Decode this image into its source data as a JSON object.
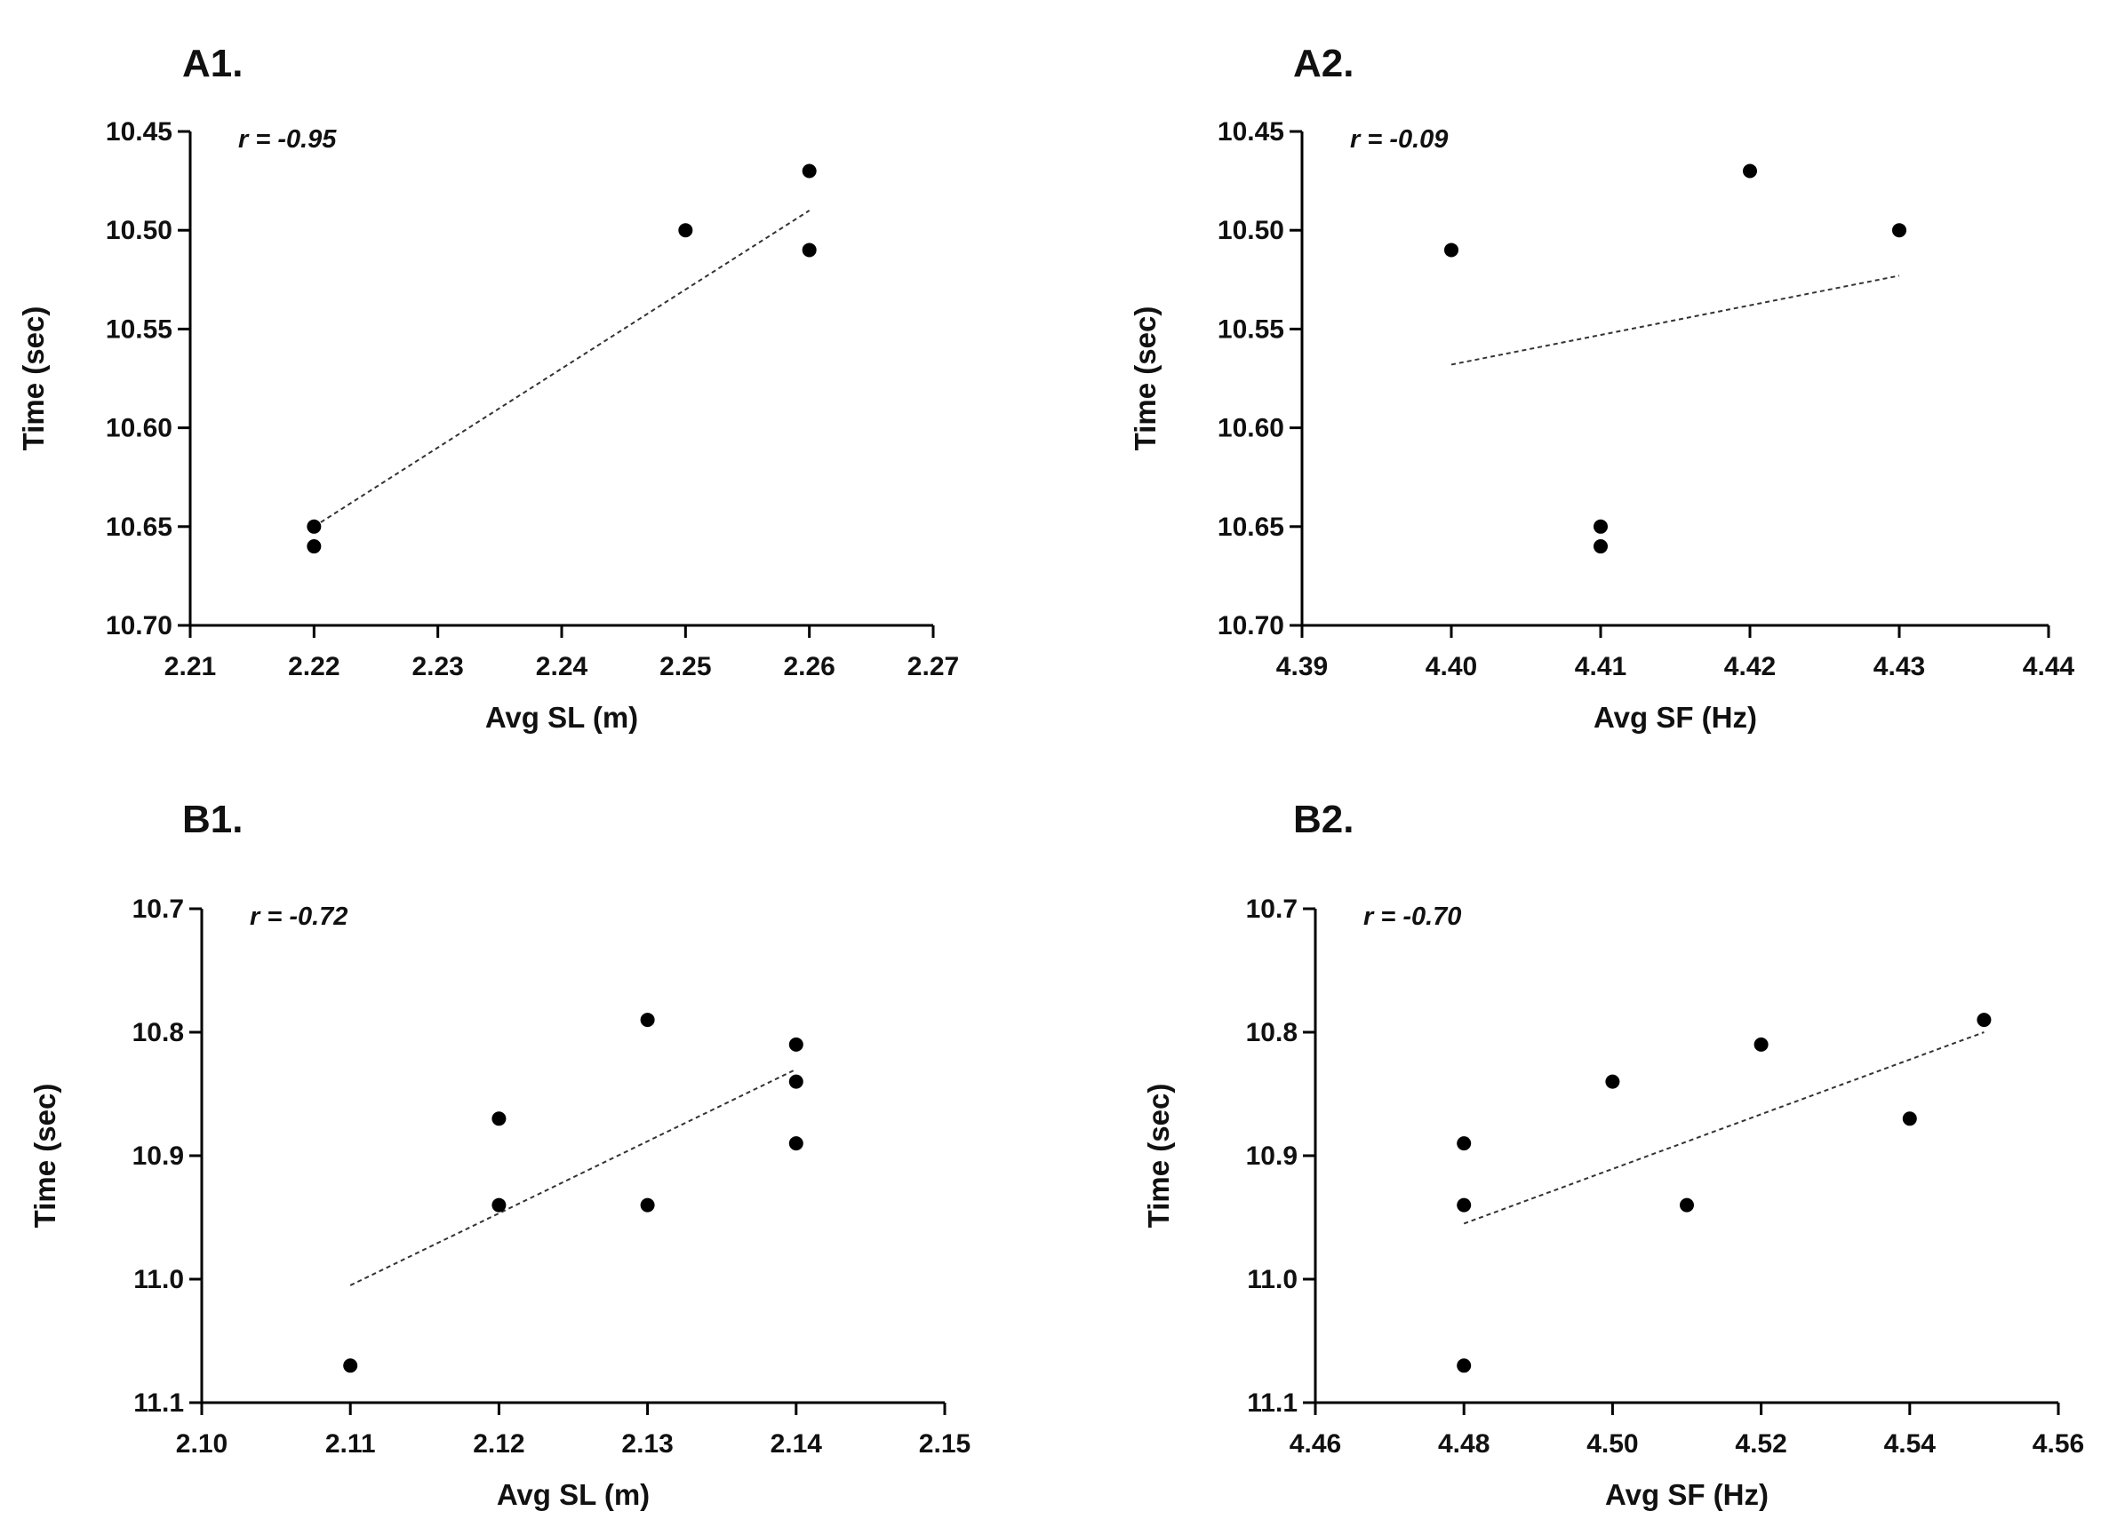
{
  "chart_data": [
    {
      "id": "A1",
      "type": "scatter",
      "panel_label": "A1.",
      "annotation": "r = -0.95",
      "xlabel": "Avg SL (m)",
      "ylabel": "Time (sec)",
      "xlim": [
        2.21,
        2.27
      ],
      "ylim": [
        10.45,
        10.7
      ],
      "y_inverted": true,
      "xticks": [
        2.21,
        2.22,
        2.23,
        2.24,
        2.25,
        2.26,
        2.27
      ],
      "xtick_labels": [
        "2.21",
        "2.22",
        "2.23",
        "2.24",
        "2.25",
        "2.26",
        "2.27"
      ],
      "yticks": [
        10.45,
        10.5,
        10.55,
        10.6,
        10.65,
        10.7
      ],
      "ytick_labels": [
        "10.45",
        "10.50",
        "10.55",
        "10.60",
        "10.65",
        "10.70"
      ],
      "points": [
        [
          2.22,
          10.65
        ],
        [
          2.22,
          10.66
        ],
        [
          2.25,
          10.5
        ],
        [
          2.26,
          10.47
        ],
        [
          2.26,
          10.51
        ]
      ],
      "trendline": [
        [
          2.22,
          10.65
        ],
        [
          2.26,
          10.49
        ]
      ]
    },
    {
      "id": "A2",
      "type": "scatter",
      "panel_label": "A2.",
      "annotation": "r = -0.09",
      "xlabel": "Avg SF (Hz)",
      "ylabel": "Time (sec)",
      "xlim": [
        4.39,
        4.44
      ],
      "ylim": [
        10.45,
        10.7
      ],
      "y_inverted": true,
      "xticks": [
        4.39,
        4.4,
        4.41,
        4.42,
        4.43,
        4.44
      ],
      "xtick_labels": [
        "4.39",
        "4.40",
        "4.41",
        "4.42",
        "4.43",
        "4.44"
      ],
      "yticks": [
        10.45,
        10.5,
        10.55,
        10.6,
        10.65,
        10.7
      ],
      "ytick_labels": [
        "10.45",
        "10.50",
        "10.55",
        "10.60",
        "10.65",
        "10.70"
      ],
      "points": [
        [
          4.4,
          10.51
        ],
        [
          4.41,
          10.65
        ],
        [
          4.41,
          10.66
        ],
        [
          4.42,
          10.47
        ],
        [
          4.43,
          10.5
        ]
      ],
      "trendline": [
        [
          4.4,
          10.568
        ],
        [
          4.43,
          10.523
        ]
      ]
    },
    {
      "id": "B1",
      "type": "scatter",
      "panel_label": "B1.",
      "annotation": "r = -0.72",
      "xlabel": "Avg SL (m)",
      "ylabel": "Time (sec)",
      "xlim": [
        2.1,
        2.15
      ],
      "ylim": [
        10.7,
        11.1
      ],
      "y_inverted": true,
      "xticks": [
        2.1,
        2.11,
        2.12,
        2.13,
        2.14,
        2.15
      ],
      "xtick_labels": [
        "2.10",
        "2.11",
        "2.12",
        "2.13",
        "2.14",
        "2.15"
      ],
      "yticks": [
        10.7,
        10.8,
        10.9,
        11.0,
        11.1
      ],
      "ytick_labels": [
        "10.7",
        "10.8",
        "10.9",
        "11.0",
        "11.1"
      ],
      "points": [
        [
          2.11,
          11.07
        ],
        [
          2.12,
          10.87
        ],
        [
          2.12,
          10.94
        ],
        [
          2.13,
          10.79
        ],
        [
          2.13,
          10.94
        ],
        [
          2.14,
          10.81
        ],
        [
          2.14,
          10.84
        ],
        [
          2.14,
          10.89
        ]
      ],
      "trendline": [
        [
          2.11,
          11.005
        ],
        [
          2.14,
          10.83
        ]
      ]
    },
    {
      "id": "B2",
      "type": "scatter",
      "panel_label": "B2.",
      "annotation": "r = -0.70",
      "xlabel": "Avg SF (Hz)",
      "ylabel": "Time (sec)",
      "xlim": [
        4.46,
        4.56
      ],
      "ylim": [
        10.7,
        11.1
      ],
      "y_inverted": true,
      "xticks": [
        4.46,
        4.48,
        4.5,
        4.52,
        4.54,
        4.56
      ],
      "xtick_labels": [
        "4.46",
        "4.48",
        "4.50",
        "4.52",
        "4.54",
        "4.56"
      ],
      "yticks": [
        10.7,
        10.8,
        10.9,
        11.0,
        11.1
      ],
      "ytick_labels": [
        "10.7",
        "10.8",
        "10.9",
        "11.0",
        "11.1"
      ],
      "points": [
        [
          4.48,
          10.89
        ],
        [
          4.48,
          10.94
        ],
        [
          4.48,
          11.07
        ],
        [
          4.5,
          10.84
        ],
        [
          4.51,
          10.94
        ],
        [
          4.52,
          10.81
        ],
        [
          4.54,
          10.87
        ],
        [
          4.55,
          10.79
        ]
      ],
      "trendline": [
        [
          4.48,
          10.955
        ],
        [
          4.55,
          10.8
        ]
      ]
    }
  ]
}
